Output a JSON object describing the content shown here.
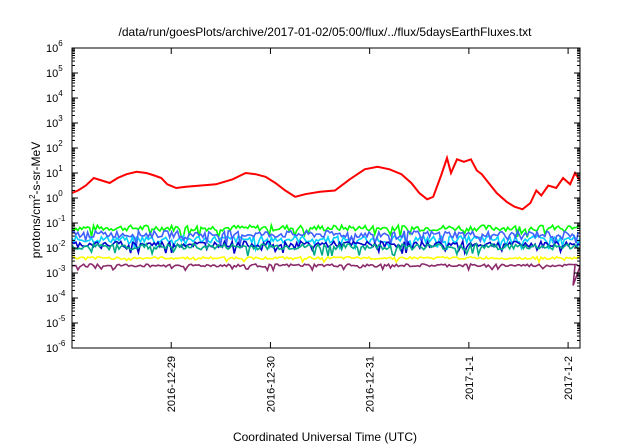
{
  "chart_data": {
    "type": "line",
    "title": "/data/run/goesPlots/archive/2017-01-02/05:00/flux/../flux/5daysEarthFluxes.txt",
    "xlabel": "Coordinated Universal Time (UTC)",
    "ylabel": "protons/cm²-s-sr-MeV",
    "y_scale": "log",
    "ylim_exponent": [
      -6,
      6
    ],
    "y_tick_base": "10",
    "y_tick_exponents": [
      "-6",
      "-5",
      "-4",
      "-3",
      "-2",
      "-1",
      "0",
      "1",
      "2",
      "3",
      "4",
      "5",
      "6"
    ],
    "xlim_days": [
      0,
      5.12
    ],
    "x_ticks": [
      {
        "label": "2016-12-29",
        "day": 1.0
      },
      {
        "label": "2016-12-30",
        "day": 2.0
      },
      {
        "label": "2016-12-31",
        "day": 3.0
      },
      {
        "label": "2017-1-1",
        "day": 4.0
      },
      {
        "label": "2017-1-2",
        "day": 5.0
      }
    ],
    "grid": false,
    "series": [
      {
        "color": "#ff0000",
        "log_values": [
          [
            0.0,
            0.2
          ],
          [
            0.06,
            0.3
          ],
          [
            0.14,
            0.5
          ],
          [
            0.22,
            0.8
          ],
          [
            0.3,
            0.7
          ],
          [
            0.38,
            0.6
          ],
          [
            0.46,
            0.8
          ],
          [
            0.55,
            0.95
          ],
          [
            0.65,
            1.05
          ],
          [
            0.75,
            1.0
          ],
          [
            0.83,
            0.9
          ],
          [
            0.9,
            0.8
          ],
          [
            0.96,
            0.55
          ],
          [
            1.05,
            0.4
          ],
          [
            1.15,
            0.45
          ],
          [
            1.3,
            0.5
          ],
          [
            1.45,
            0.55
          ],
          [
            1.62,
            0.75
          ],
          [
            1.75,
            1.0
          ],
          [
            1.85,
            0.95
          ],
          [
            1.95,
            0.85
          ],
          [
            2.05,
            0.6
          ],
          [
            2.15,
            0.3
          ],
          [
            2.25,
            0.05
          ],
          [
            2.35,
            0.15
          ],
          [
            2.5,
            0.25
          ],
          [
            2.65,
            0.3
          ],
          [
            2.8,
            0.75
          ],
          [
            2.95,
            1.15
          ],
          [
            3.08,
            1.25
          ],
          [
            3.2,
            1.15
          ],
          [
            3.32,
            0.95
          ],
          [
            3.42,
            0.6
          ],
          [
            3.5,
            0.2
          ],
          [
            3.58,
            -0.05
          ],
          [
            3.64,
            0.05
          ],
          [
            3.72,
            0.9
          ],
          [
            3.78,
            1.6
          ],
          [
            3.82,
            1.0
          ],
          [
            3.88,
            1.55
          ],
          [
            3.95,
            1.45
          ],
          [
            4.02,
            1.55
          ],
          [
            4.08,
            1.1
          ],
          [
            4.13,
            0.95
          ],
          [
            4.2,
            0.6
          ],
          [
            4.28,
            0.2
          ],
          [
            4.38,
            -0.15
          ],
          [
            4.46,
            -0.35
          ],
          [
            4.54,
            -0.45
          ],
          [
            4.62,
            -0.2
          ],
          [
            4.68,
            0.3
          ],
          [
            4.73,
            0.1
          ],
          [
            4.8,
            0.5
          ],
          [
            4.88,
            0.4
          ],
          [
            4.95,
            0.8
          ],
          [
            5.02,
            0.55
          ],
          [
            5.07,
            1.0
          ],
          [
            5.12,
            0.7
          ],
          [
            5.18,
            1.4
          ],
          [
            5.24,
            1.3
          ],
          [
            5.3,
            0.9
          ],
          [
            5.36,
            0.55
          ],
          [
            5.42,
            0.7
          ],
          [
            5.47,
            0.4
          ],
          [
            5.5,
            0.45
          ]
        ]
      },
      {
        "color": "#00ff00",
        "log_values": [
          [
            0.0,
            -1.2
          ],
          [
            5.5,
            -1.2
          ]
        ],
        "noise": 0.12
      },
      {
        "color": "#00d0ff",
        "log_values": [
          [
            0.0,
            -1.65
          ],
          [
            5.5,
            -1.65
          ]
        ],
        "noise": 0.14
      },
      {
        "color": "#4060ff",
        "log_values": [
          [
            0.0,
            -1.45
          ],
          [
            5.5,
            -1.45
          ]
        ],
        "noise": 0.14
      },
      {
        "color": "#0000cc",
        "log_values": [
          [
            0.0,
            -1.85
          ],
          [
            5.5,
            -1.85
          ]
        ],
        "noise": 0.12
      },
      {
        "color": "#00aa88",
        "log_values": [
          [
            0.0,
            -1.95
          ],
          [
            5.5,
            -1.95
          ]
        ],
        "noise": 0.12
      },
      {
        "color": "#ffff00",
        "log_values": [
          [
            0.0,
            -2.4
          ],
          [
            5.5,
            -2.4
          ]
        ],
        "noise": 0.05
      },
      {
        "color": "#8b2a6a",
        "log_values": [
          [
            0.0,
            -2.7
          ],
          [
            5.5,
            -2.7
          ]
        ],
        "noise": 0.06
      }
    ]
  }
}
